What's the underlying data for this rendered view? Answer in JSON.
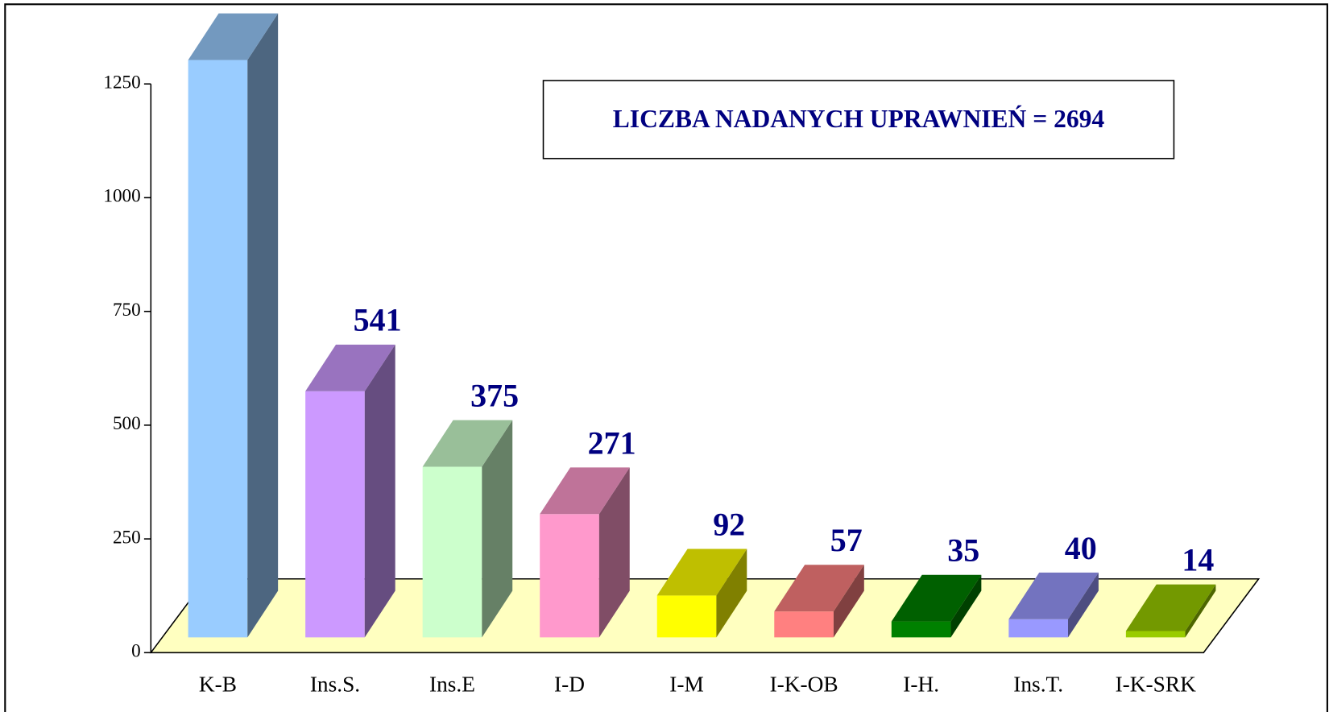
{
  "chart_data": {
    "type": "bar3d",
    "annotation": "LICZBA NADANYCH  UPRAWNIEŃ = 2694",
    "categories": [
      "K-B",
      "Ins.S.",
      "Ins.E",
      "I-D",
      "I-M",
      "I-K-OB",
      "I-H.",
      "Ins.T.",
      "I-K-SRK"
    ],
    "values": [
      1269,
      541,
      375,
      271,
      92,
      57,
      35,
      40,
      14
    ],
    "colors": [
      "#99ccff",
      "#cc99ff",
      "#ccffcc",
      "#ff99cc",
      "#ffff00",
      "#ff8080",
      "#008000",
      "#9999ff",
      "#99cc00"
    ],
    "floor_color": "#ffffc0",
    "ylim": [
      0,
      1250
    ],
    "yticks": [
      0,
      250,
      500,
      750,
      1000,
      1250
    ]
  }
}
